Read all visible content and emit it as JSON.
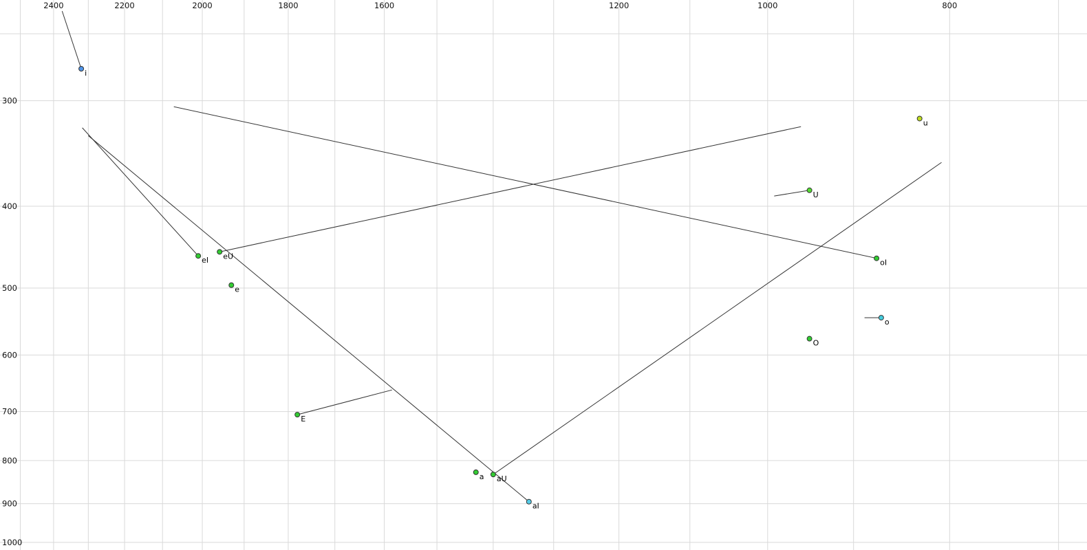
{
  "chart_data": {
    "type": "scatter",
    "title": "",
    "xlabel": "",
    "ylabel": "",
    "background": "#ffffff",
    "grid_color": "#d9d9d9",
    "line_color": "#333333",
    "point_stroke": "#333333",
    "x_axis": {
      "unit": "Hz",
      "scale": "log",
      "direction": "decreasing-to-right",
      "range": [
        2563,
        676
      ],
      "tick_labels": [
        2400,
        2200,
        2000,
        1800,
        1600,
        1200,
        1000,
        800
      ],
      "gridlines": [
        2500,
        2400,
        2300,
        2200,
        2100,
        2000,
        1900,
        1800,
        1700,
        1600,
        1500,
        1400,
        1300,
        1200,
        1100,
        1000,
        900,
        800,
        700
      ]
    },
    "y_axis": {
      "unit": "Hz",
      "scale": "log",
      "direction": "increasing-down",
      "range": [
        228,
        1021
      ],
      "tick_labels": [
        300,
        400,
        500,
        600,
        700,
        800,
        900,
        1000
      ],
      "gridlines": [
        250,
        300,
        400,
        500,
        600,
        700,
        800,
        900,
        1000
      ]
    },
    "points": [
      {
        "label": "i",
        "f1": 275,
        "f2": 2320,
        "color": "#4f94e8",
        "glide": {
          "f1": 235,
          "f2": 2375
        }
      },
      {
        "label": "u",
        "f1": 315,
        "f2": 830,
        "color": "#bfdd22",
        "glide": null
      },
      {
        "label": "U",
        "f1": 383,
        "f2": 950,
        "color": "#55dd33",
        "glide": {
          "f1": 389,
          "f2": 992
        }
      },
      {
        "label": "eI",
        "f1": 458,
        "f2": 2010,
        "color": "#33cc33",
        "glide": {
          "f1": 323,
          "f2": 2317
        }
      },
      {
        "label": "eU",
        "f1": 453,
        "f2": 1958,
        "color": "#33cc33",
        "glide": {
          "f1": 322,
          "f2": 960
        }
      },
      {
        "label": "e",
        "f1": 496,
        "f2": 1930,
        "color": "#33cc33",
        "glide": null
      },
      {
        "label": "oI",
        "f1": 461,
        "f2": 875,
        "color": "#33cc33",
        "glide": {
          "f1": 305,
          "f2": 2071
        }
      },
      {
        "label": "o",
        "f1": 542,
        "f2": 870,
        "color": "#44ccdd",
        "glide": {
          "f1": 542,
          "f2": 888
        }
      },
      {
        "label": "O",
        "f1": 574,
        "f2": 950,
        "color": "#33cc33",
        "glide": null
      },
      {
        "label": "E",
        "f1": 706,
        "f2": 1780,
        "color": "#33cc33",
        "glide": {
          "f1": 660,
          "f2": 1585
        }
      },
      {
        "label": "a",
        "f1": 826,
        "f2": 1430,
        "color": "#33cc33",
        "glide": null
      },
      {
        "label": "aU",
        "f1": 831,
        "f2": 1400,
        "color": "#33cc33",
        "glide": {
          "f1": 355,
          "f2": 808
        }
      },
      {
        "label": "aI",
        "f1": 895,
        "f2": 1340,
        "color": "#55cce8",
        "glide": {
          "f1": 330,
          "f2": 2300
        }
      }
    ]
  }
}
